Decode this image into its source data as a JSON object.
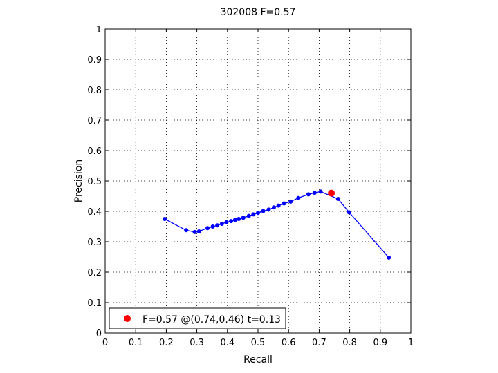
{
  "chart_data": {
    "type": "line",
    "title": "302008 F=0.57",
    "xlabel": "Recall",
    "ylabel": "Precision",
    "xlim": [
      0,
      1
    ],
    "ylim": [
      0,
      1
    ],
    "xticks": [
      "0",
      "0.1",
      "0.2",
      "0.3",
      "0.4",
      "0.5",
      "0.6",
      "0.7",
      "0.8",
      "0.9",
      "1"
    ],
    "yticks": [
      "0",
      "0.1",
      "0.2",
      "0.3",
      "0.4",
      "0.5",
      "0.6",
      "0.7",
      "0.8",
      "0.9",
      "1"
    ],
    "grid": true,
    "legend_location": "bottom-left",
    "series": [
      {
        "color": "#0000ff",
        "points": [
          [
            0.195,
            0.375
          ],
          [
            0.265,
            0.338
          ],
          [
            0.293,
            0.332
          ],
          [
            0.307,
            0.334
          ],
          [
            0.335,
            0.345
          ],
          [
            0.352,
            0.35
          ],
          [
            0.367,
            0.354
          ],
          [
            0.382,
            0.359
          ],
          [
            0.397,
            0.364
          ],
          [
            0.412,
            0.368
          ],
          [
            0.425,
            0.372
          ],
          [
            0.437,
            0.375
          ],
          [
            0.452,
            0.379
          ],
          [
            0.47,
            0.385
          ],
          [
            0.485,
            0.39
          ],
          [
            0.5,
            0.395
          ],
          [
            0.517,
            0.401
          ],
          [
            0.535,
            0.406
          ],
          [
            0.552,
            0.413
          ],
          [
            0.567,
            0.419
          ],
          [
            0.585,
            0.426
          ],
          [
            0.607,
            0.432
          ],
          [
            0.632,
            0.444
          ],
          [
            0.665,
            0.456
          ],
          [
            0.685,
            0.461
          ],
          [
            0.705,
            0.465
          ],
          [
            0.762,
            0.441
          ],
          [
            0.798,
            0.397
          ],
          [
            0.928,
            0.248
          ]
        ]
      }
    ],
    "best_point": {
      "recall": 0.74,
      "precision": 0.46,
      "color": "#ff0000",
      "label": "F=0.57 @(0.74,0.46) t=0.13"
    }
  }
}
